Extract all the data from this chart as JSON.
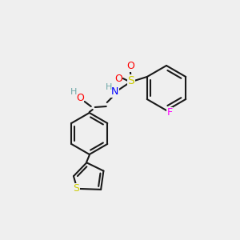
{
  "bg_color": "#efefef",
  "bond_color": "#1a1a1a",
  "bond_width": 1.5,
  "atom_colors": {
    "O": "#ff0000",
    "N": "#0000ff",
    "S": "#cccc00",
    "F": "#ff00ff",
    "H_gray": "#6fa8a8",
    "C": "#1a1a1a"
  },
  "font_size_atom": 9,
  "font_size_small": 7
}
